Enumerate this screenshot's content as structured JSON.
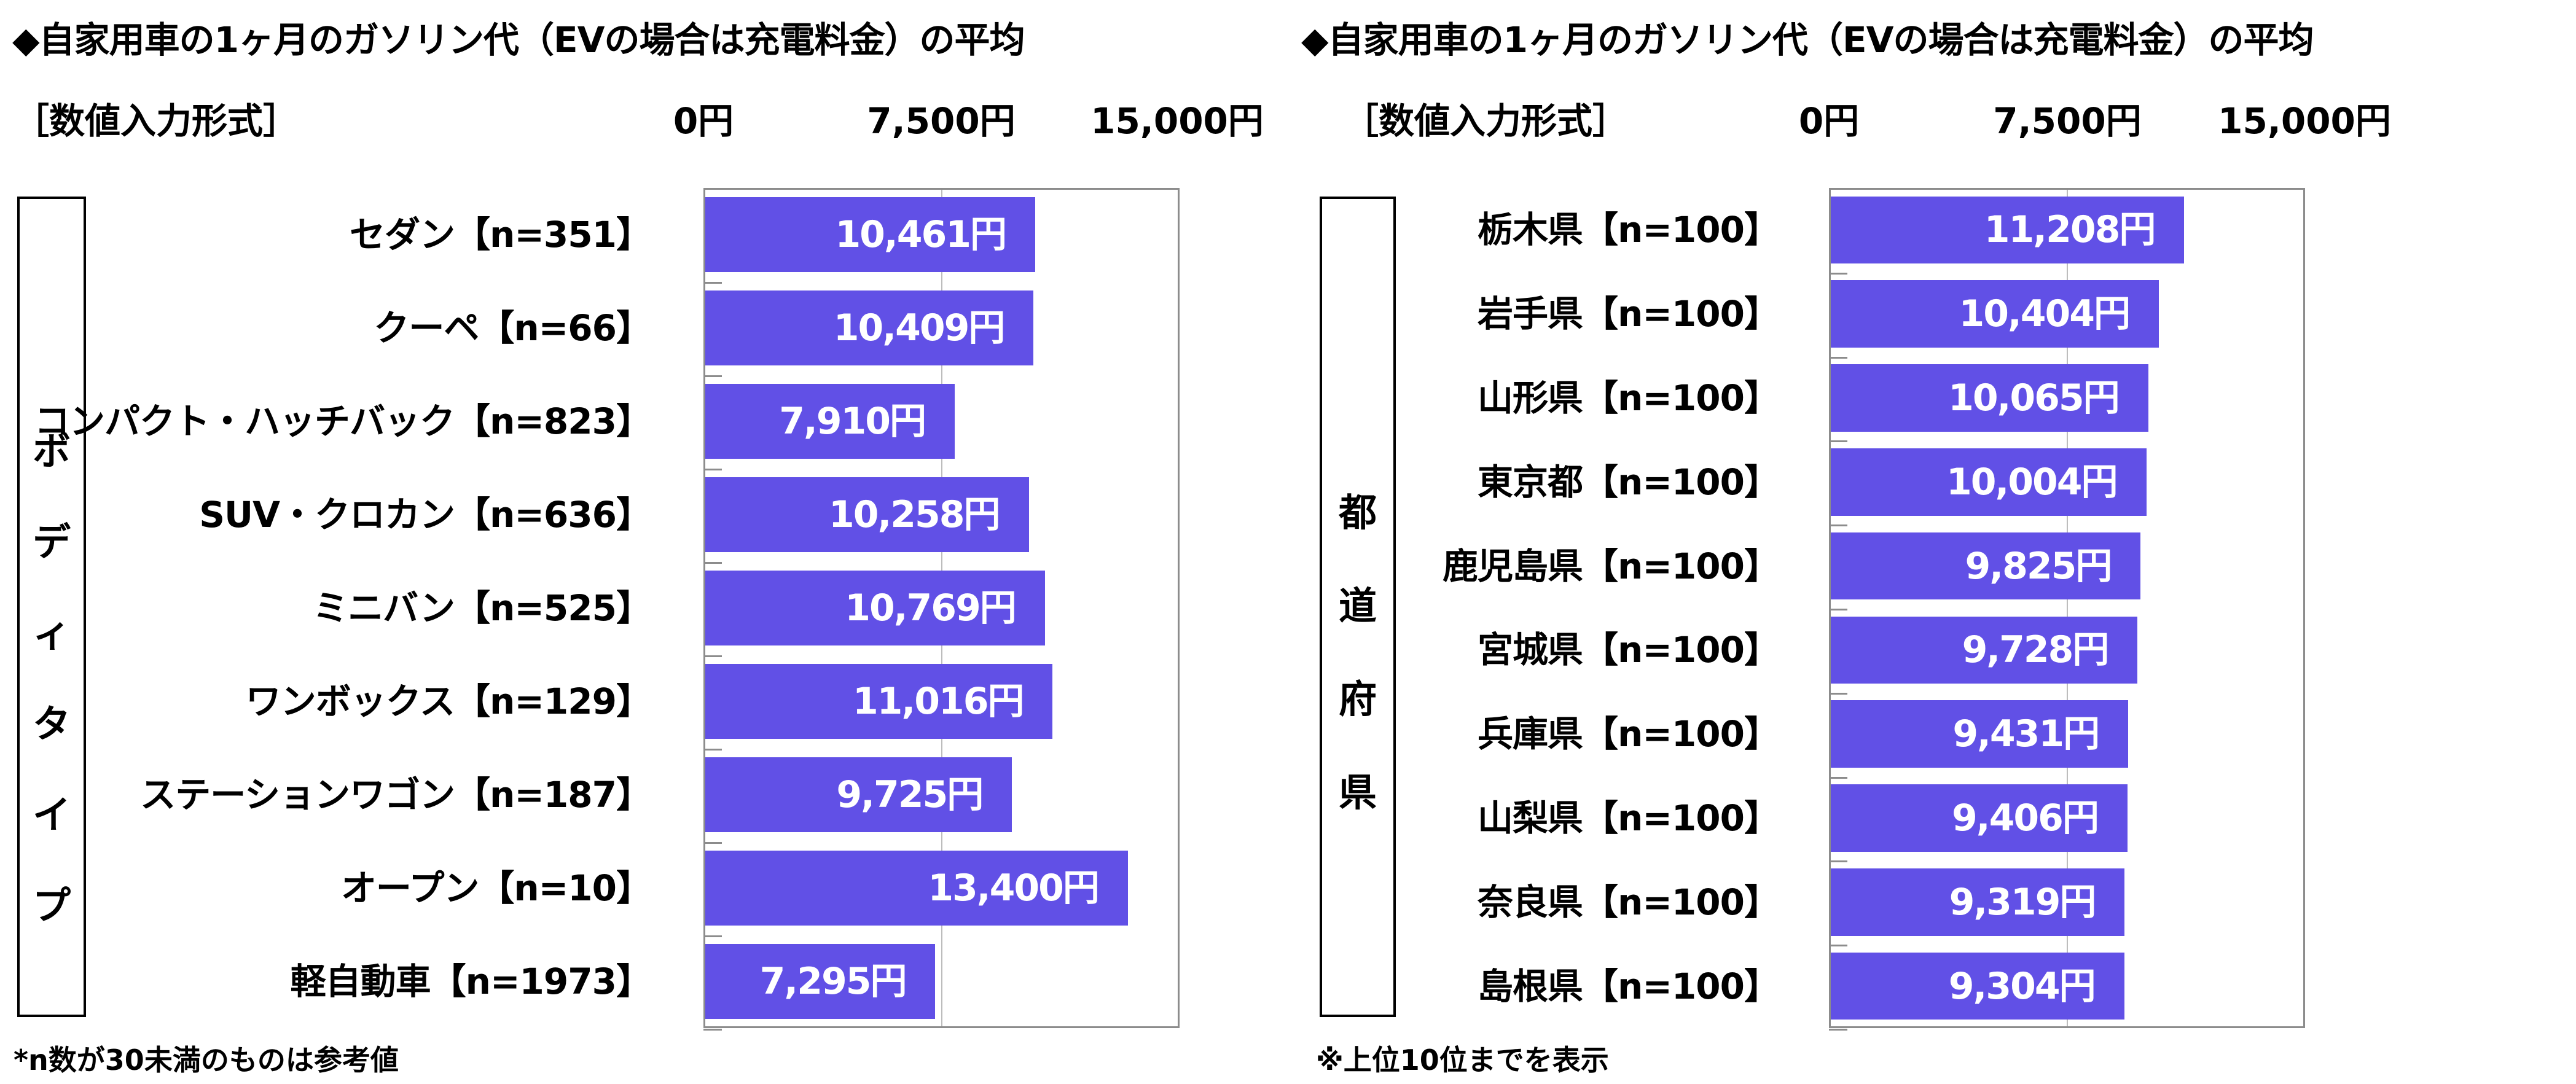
{
  "chart_data": [
    {
      "type": "bar",
      "orientation": "horizontal",
      "title": "◆自家用車の1ヶ月のガソリン代（EVの場合は充電料金）の平均",
      "format_label": "［数値入力形式］",
      "group_label": "ボディタイプ",
      "x_tick_labels": [
        "0円",
        "7,500円",
        "15,000円"
      ],
      "xlim": [
        0,
        15000
      ],
      "grid": true,
      "bar_color": "#6150e6",
      "categories": [
        "セダン【n=351】",
        "クーペ【n=66】",
        "コンパクト・ハッチバック【n=823】",
        "SUV・クロカン【n=636】",
        "ミニバン【n=525】",
        "ワンボックス【n=129】",
        "ステーションワゴン【n=187】",
        "オープン【n=10】",
        "軽自動車【n=1973】"
      ],
      "values": [
        10461,
        10409,
        7910,
        10258,
        10769,
        11016,
        9725,
        13400,
        7295
      ],
      "value_labels": [
        "10,461円",
        "10,409円",
        "7,910円",
        "10,258円",
        "10,769円",
        "11,016円",
        "9,725円",
        "13,400円",
        "7,295円"
      ],
      "footnote": "*n数が30未満のものは参考値"
    },
    {
      "type": "bar",
      "orientation": "horizontal",
      "title": "◆自家用車の1ヶ月のガソリン代（EVの場合は充電料金）の平均",
      "format_label": "［数値入力形式］",
      "group_label": "都道府県",
      "x_tick_labels": [
        "0円",
        "7,500円",
        "15,000円"
      ],
      "xlim": [
        0,
        15000
      ],
      "grid": true,
      "bar_color": "#6150e6",
      "categories": [
        "栃木県【n=100】",
        "岩手県【n=100】",
        "山形県【n=100】",
        "東京都【n=100】",
        "鹿児島県【n=100】",
        "宮城県【n=100】",
        "兵庫県【n=100】",
        "山梨県【n=100】",
        "奈良県【n=100】",
        "島根県【n=100】"
      ],
      "values": [
        11208,
        10404,
        10065,
        10004,
        9825,
        9728,
        9431,
        9406,
        9319,
        9304
      ],
      "value_labels": [
        "11,208円",
        "10,404円",
        "10,065円",
        "10,004円",
        "9,825円",
        "9,728円",
        "9,431円",
        "9,406円",
        "9,319円",
        "9,304円"
      ],
      "footnote": "※上位10位までを表示"
    }
  ]
}
